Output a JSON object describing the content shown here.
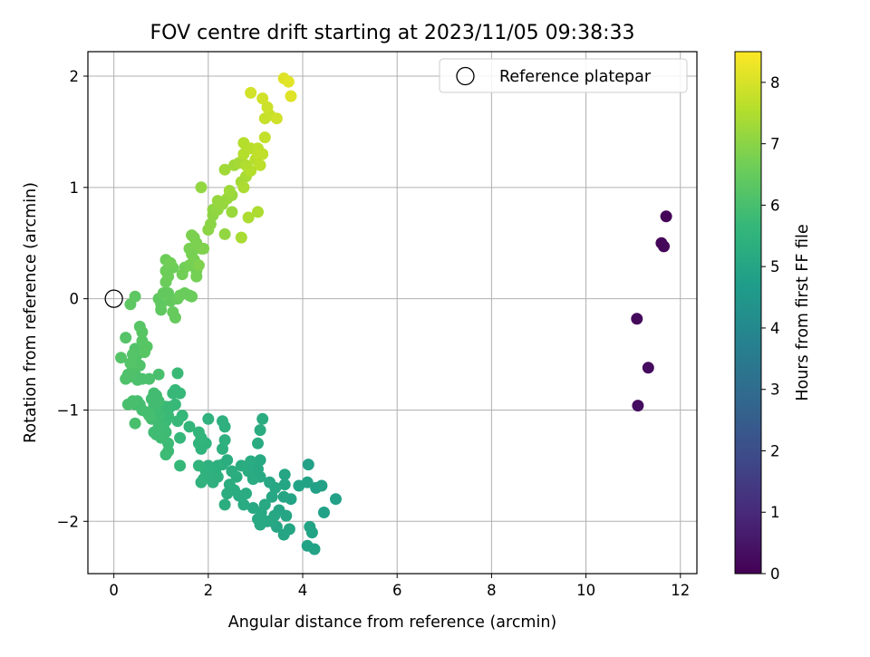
{
  "chart_data": {
    "type": "scatter",
    "title": "FOV centre drift starting at 2023/11/05 09:38:33",
    "xlabel": "Angular distance from reference (arcmin)",
    "ylabel": "Rotation from reference (arcmin)",
    "xlim": [
      -0.55,
      12.35
    ],
    "ylim": [
      -2.47,
      2.22
    ],
    "xticks": [
      0,
      2,
      4,
      6,
      8,
      10,
      12
    ],
    "xtick_labels": [
      "0",
      "2",
      "4",
      "6",
      "8",
      "10",
      "12"
    ],
    "yticks": [
      -2,
      -1,
      0,
      1,
      2
    ],
    "ytick_labels": [
      "−2",
      "−1",
      "0",
      "1",
      "2"
    ],
    "grid": true,
    "legend_position": "top-right",
    "colormap": "viridis",
    "reference": {
      "label": "Reference platepar",
      "x": 0,
      "y": 0,
      "marker": "open-circle"
    },
    "colorbar": {
      "label": "Hours from first FF file",
      "min": 0,
      "max": 8.5,
      "ticks": [
        0,
        1,
        2,
        3,
        4,
        5,
        6,
        7,
        8
      ],
      "tick_labels": [
        "0",
        "1",
        "2",
        "3",
        "4",
        "5",
        "6",
        "7",
        "8"
      ]
    },
    "points": [
      [
        11.7,
        0.74,
        0.1
      ],
      [
        11.6,
        0.5,
        0.12
      ],
      [
        11.65,
        0.47,
        0.14
      ],
      [
        11.08,
        -0.18,
        0.2
      ],
      [
        11.32,
        -0.62,
        0.25
      ],
      [
        11.1,
        -0.96,
        0.3
      ],
      [
        4.25,
        -2.25,
        4.9
      ],
      [
        4.1,
        -2.22,
        4.9
      ],
      [
        4.15,
        -2.05,
        4.9
      ],
      [
        4.2,
        -2.1,
        4.9
      ],
      [
        4.45,
        -1.92,
        4.85
      ],
      [
        4.7,
        -1.8,
        4.85
      ],
      [
        4.4,
        -1.68,
        4.85
      ],
      [
        4.28,
        -1.7,
        4.85
      ],
      [
        4.1,
        -1.65,
        4.9
      ],
      [
        4.12,
        -1.49,
        4.85
      ],
      [
        3.92,
        -1.68,
        4.9
      ],
      [
        3.75,
        -1.8,
        4.95
      ],
      [
        3.6,
        -1.78,
        5.0
      ],
      [
        3.5,
        -1.9,
        5.0
      ],
      [
        3.65,
        -1.95,
        5.0
      ],
      [
        3.72,
        -2.07,
        5.0
      ],
      [
        3.6,
        -2.12,
        5.0
      ],
      [
        3.45,
        -2.05,
        5.0
      ],
      [
        3.35,
        -2.0,
        5.05
      ],
      [
        3.62,
        -1.58,
        5.0
      ],
      [
        3.62,
        -1.67,
        5.0
      ],
      [
        3.42,
        -1.7,
        5.05
      ],
      [
        3.3,
        -1.65,
        5.05
      ],
      [
        3.35,
        -1.78,
        5.05
      ],
      [
        3.2,
        -1.85,
        5.1
      ],
      [
        3.12,
        -1.92,
        5.1
      ],
      [
        3.05,
        -1.98,
        5.1
      ],
      [
        3.1,
        -2.03,
        5.1
      ],
      [
        3.25,
        -2.0,
        5.1
      ],
      [
        3.4,
        -1.95,
        5.05
      ],
      [
        2.95,
        -1.88,
        5.1
      ],
      [
        3.1,
        -1.6,
        5.15
      ],
      [
        3.05,
        -1.53,
        5.15
      ],
      [
        3.1,
        -1.45,
        5.15
      ],
      [
        3.0,
        -1.5,
        5.15
      ],
      [
        2.9,
        -1.46,
        5.2
      ],
      [
        2.85,
        -1.55,
        5.2
      ],
      [
        2.95,
        -1.62,
        5.2
      ],
      [
        3.05,
        -1.3,
        5.2
      ],
      [
        3.1,
        -1.18,
        5.25
      ],
      [
        3.15,
        -1.08,
        5.25
      ],
      [
        2.8,
        -1.75,
        5.2
      ],
      [
        2.75,
        -1.85,
        5.2
      ],
      [
        2.65,
        -1.77,
        5.2
      ],
      [
        2.55,
        -1.72,
        5.25
      ],
      [
        2.6,
        -1.6,
        5.25
      ],
      [
        2.7,
        -1.5,
        5.25
      ],
      [
        2.5,
        -1.55,
        5.3
      ],
      [
        2.45,
        -1.67,
        5.3
      ],
      [
        2.35,
        -1.85,
        5.3
      ],
      [
        2.4,
        -1.75,
        5.3
      ],
      [
        2.2,
        -1.6,
        5.35
      ],
      [
        2.2,
        -1.5,
        5.35
      ],
      [
        2.15,
        -1.55,
        5.35
      ],
      [
        2.3,
        -1.49,
        5.35
      ],
      [
        2.4,
        -1.45,
        5.3
      ],
      [
        2.3,
        -1.35,
        5.35
      ],
      [
        2.35,
        -1.27,
        5.4
      ],
      [
        2.35,
        -1.15,
        5.4
      ],
      [
        2.3,
        -1.1,
        5.4
      ],
      [
        2.0,
        -1.5,
        5.4
      ],
      [
        2.05,
        -1.6,
        5.4
      ],
      [
        2.1,
        -1.65,
        5.4
      ],
      [
        1.95,
        -1.55,
        5.45
      ],
      [
        1.85,
        -1.65,
        5.45
      ],
      [
        1.9,
        -1.62,
        5.45
      ],
      [
        1.8,
        -1.5,
        5.5
      ],
      [
        2.0,
        -1.08,
        5.45
      ],
      [
        1.95,
        -1.3,
        5.5
      ],
      [
        1.85,
        -1.35,
        5.5
      ],
      [
        1.8,
        -1.3,
        5.5
      ],
      [
        1.8,
        -1.2,
        5.55
      ],
      [
        1.85,
        -1.25,
        5.55
      ],
      [
        1.6,
        -1.15,
        5.6
      ],
      [
        1.4,
        -1.5,
        5.65
      ],
      [
        1.4,
        -1.25,
        5.65
      ],
      [
        1.45,
        -1.05,
        5.65
      ],
      [
        1.35,
        -1.1,
        5.7
      ],
      [
        1.3,
        -0.95,
        5.7
      ],
      [
        1.2,
        -0.97,
        5.7
      ],
      [
        1.25,
        -0.85,
        5.7
      ],
      [
        1.3,
        -0.82,
        5.7
      ],
      [
        1.4,
        -0.85,
        5.7
      ],
      [
        1.35,
        -0.67,
        5.75
      ],
      [
        1.15,
        -1.05,
        5.75
      ],
      [
        1.1,
        -1.1,
        5.75
      ],
      [
        1.1,
        -0.97,
        5.75
      ],
      [
        1.05,
        -1.15,
        5.8
      ],
      [
        1.1,
        -1.2,
        5.8
      ],
      [
        1.15,
        -1.3,
        5.8
      ],
      [
        1.15,
        -1.37,
        5.8
      ],
      [
        1.1,
        -1.4,
        5.8
      ],
      [
        1.0,
        -1.25,
        5.85
      ],
      [
        0.9,
        -1.22,
        5.85
      ],
      [
        0.85,
        -1.2,
        5.85
      ],
      [
        0.95,
        -1.15,
        5.85
      ],
      [
        0.95,
        -1.05,
        5.85
      ],
      [
        0.9,
        -1.0,
        5.85
      ],
      [
        0.85,
        -0.95,
        5.9
      ],
      [
        0.8,
        -0.9,
        5.9
      ],
      [
        0.85,
        -0.85,
        5.9
      ],
      [
        0.9,
        -0.87,
        5.9
      ],
      [
        0.95,
        -0.92,
        5.9
      ],
      [
        0.8,
        -1.08,
        5.9
      ],
      [
        0.75,
        -1.05,
        5.95
      ],
      [
        0.7,
        -1.02,
        5.95
      ],
      [
        0.6,
        -1.0,
        5.95
      ],
      [
        0.55,
        -0.95,
        5.95
      ],
      [
        0.5,
        -0.92,
        5.95
      ],
      [
        0.45,
        -0.95,
        5.95
      ],
      [
        0.4,
        -0.92,
        6.0
      ],
      [
        0.3,
        -0.95,
        6.0
      ],
      [
        0.45,
        -1.12,
        6.0
      ],
      [
        0.95,
        -0.68,
        6.0
      ],
      [
        0.75,
        -0.72,
        6.05
      ],
      [
        0.6,
        -0.72,
        6.05
      ],
      [
        0.5,
        -0.73,
        6.05
      ],
      [
        0.45,
        -0.68,
        6.05
      ],
      [
        0.35,
        -0.7,
        6.1
      ],
      [
        0.3,
        -0.68,
        6.1
      ],
      [
        0.25,
        -0.72,
        6.1
      ],
      [
        0.4,
        -0.62,
        6.1
      ],
      [
        0.45,
        -0.55,
        6.1
      ],
      [
        0.55,
        -0.6,
        6.15
      ],
      [
        0.5,
        -0.5,
        6.15
      ],
      [
        0.55,
        -0.48,
        6.15
      ],
      [
        0.45,
        -0.45,
        6.15
      ],
      [
        0.4,
        -0.5,
        6.2
      ],
      [
        0.35,
        -0.58,
        6.2
      ],
      [
        0.15,
        -0.53,
        6.2
      ],
      [
        0.25,
        -0.35,
        6.2
      ],
      [
        0.6,
        -0.38,
        6.25
      ],
      [
        0.6,
        -0.3,
        6.25
      ],
      [
        0.55,
        -0.25,
        6.25
      ],
      [
        0.7,
        -0.43,
        6.25
      ],
      [
        0.65,
        -0.48,
        6.25
      ],
      [
        0.35,
        -0.05,
        6.35
      ],
      [
        0.45,
        0.02,
        6.35
      ],
      [
        1.0,
        -0.1,
        6.4
      ],
      [
        1.0,
        -0.05,
        6.4
      ],
      [
        0.95,
        0.0,
        6.4
      ],
      [
        1.05,
        0.05,
        6.45
      ],
      [
        1.15,
        0.05,
        6.45
      ],
      [
        1.2,
        -0.02,
        6.45
      ],
      [
        1.25,
        -0.12,
        6.5
      ],
      [
        1.3,
        -0.17,
        6.5
      ],
      [
        1.35,
        0.0,
        6.5
      ],
      [
        1.5,
        0.05,
        6.55
      ],
      [
        1.6,
        0.03,
        6.55
      ],
      [
        1.65,
        0.02,
        6.55
      ],
      [
        1.4,
        0.03,
        6.55
      ],
      [
        1.1,
        0.15,
        6.55
      ],
      [
        1.15,
        0.2,
        6.6
      ],
      [
        1.1,
        0.25,
        6.6
      ],
      [
        1.25,
        0.28,
        6.6
      ],
      [
        1.1,
        0.35,
        6.6
      ],
      [
        1.2,
        0.32,
        6.65
      ],
      [
        1.45,
        0.22,
        6.65
      ],
      [
        1.5,
        0.28,
        6.65
      ],
      [
        1.6,
        0.3,
        6.7
      ],
      [
        1.75,
        0.2,
        6.7
      ],
      [
        1.75,
        0.25,
        6.7
      ],
      [
        1.7,
        0.35,
        6.75
      ],
      [
        1.65,
        0.4,
        6.75
      ],
      [
        1.6,
        0.45,
        6.75
      ],
      [
        1.75,
        0.5,
        6.8
      ],
      [
        1.85,
        0.45,
        6.8
      ],
      [
        1.7,
        0.55,
        6.8
      ],
      [
        1.65,
        0.57,
        6.8
      ],
      [
        1.9,
        0.45,
        6.85
      ],
      [
        1.8,
        0.3,
        6.85
      ],
      [
        2.0,
        0.62,
        7.0
      ],
      [
        2.05,
        0.67,
        7.0
      ],
      [
        2.1,
        0.75,
        7.05
      ],
      [
        2.1,
        0.8,
        7.05
      ],
      [
        2.2,
        0.8,
        7.1
      ],
      [
        2.35,
        0.58,
        7.1
      ],
      [
        2.2,
        0.88,
        7.15
      ],
      [
        2.3,
        0.85,
        7.15
      ],
      [
        2.4,
        0.9,
        7.2
      ],
      [
        2.5,
        0.93,
        7.2
      ],
      [
        2.5,
        0.78,
        7.2
      ],
      [
        2.45,
        0.97,
        7.25
      ],
      [
        2.35,
        1.16,
        7.3
      ],
      [
        2.55,
        1.2,
        7.3
      ],
      [
        2.65,
        1.22,
        7.35
      ],
      [
        2.7,
        1.05,
        7.35
      ],
      [
        2.8,
        1.1,
        7.4
      ],
      [
        2.7,
        0.55,
        7.4
      ],
      [
        2.85,
        0.73,
        7.45
      ],
      [
        3.05,
        0.78,
        7.45
      ],
      [
        1.85,
        1.0,
        7.1
      ],
      [
        2.75,
        1.0,
        7.45
      ],
      [
        2.8,
        1.2,
        7.5
      ],
      [
        2.9,
        1.15,
        7.55
      ],
      [
        2.75,
        1.3,
        7.55
      ],
      [
        2.75,
        1.4,
        7.55
      ],
      [
        2.9,
        1.35,
        7.6
      ],
      [
        3.0,
        1.25,
        7.6
      ],
      [
        3.05,
        1.35,
        7.65
      ],
      [
        3.1,
        1.2,
        7.65
      ],
      [
        3.15,
        1.3,
        7.7
      ],
      [
        3.05,
        1.3,
        7.7
      ],
      [
        3.2,
        1.45,
        7.75
      ],
      [
        3.2,
        1.62,
        7.8
      ],
      [
        3.3,
        1.65,
        7.8
      ],
      [
        3.25,
        1.72,
        7.85
      ],
      [
        3.15,
        1.8,
        7.9
      ],
      [
        3.45,
        1.62,
        7.9
      ],
      [
        2.9,
        1.85,
        7.95
      ],
      [
        3.6,
        1.98,
        8.1
      ],
      [
        3.7,
        1.95,
        8.15
      ],
      [
        3.75,
        1.82,
        8.1
      ]
    ]
  }
}
